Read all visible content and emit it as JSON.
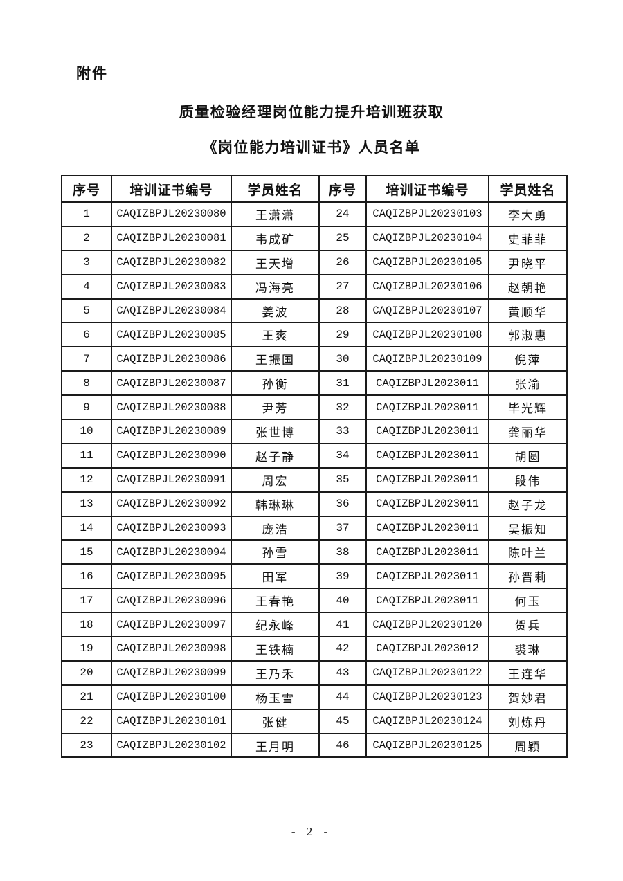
{
  "page": {
    "attachment_label": "附件",
    "title_line1": "质量检验经理岗位能力提升培训班获取",
    "title_line2": "《岗位能力培训证书》人员名单",
    "page_number": "- 2 -"
  },
  "table": {
    "headers": [
      "序号",
      "培训证书编号",
      "学员姓名",
      "序号",
      "培训证书编号",
      "学员姓名"
    ],
    "rows": [
      [
        "1",
        "CAQIZBPJL20230080",
        "王潇潇",
        "24",
        "CAQIZBPJL20230103",
        "李大勇"
      ],
      [
        "2",
        "CAQIZBPJL20230081",
        "韦成矿",
        "25",
        "CAQIZBPJL20230104",
        "史菲菲"
      ],
      [
        "3",
        "CAQIZBPJL20230082",
        "王天增",
        "26",
        "CAQIZBPJL20230105",
        "尹晓平"
      ],
      [
        "4",
        "CAQIZBPJL20230083",
        "冯海亮",
        "27",
        "CAQIZBPJL20230106",
        "赵朝艳"
      ],
      [
        "5",
        "CAQIZBPJL20230084",
        "姜波",
        "28",
        "CAQIZBPJL20230107",
        "黄顺华"
      ],
      [
        "6",
        "CAQIZBPJL20230085",
        "王爽",
        "29",
        "CAQIZBPJL20230108",
        "郭淑惠"
      ],
      [
        "7",
        "CAQIZBPJL20230086",
        "王振国",
        "30",
        "CAQIZBPJL20230109",
        "倪萍"
      ],
      [
        "8",
        "CAQIZBPJL20230087",
        "孙衡",
        "31",
        "CAQIZBPJL2023011",
        "张渝"
      ],
      [
        "9",
        "CAQIZBPJL20230088",
        "尹芳",
        "32",
        "CAQIZBPJL2023011",
        "毕光辉"
      ],
      [
        "10",
        "CAQIZBPJL20230089",
        "张世博",
        "33",
        "CAQIZBPJL2023011",
        "龚丽华"
      ],
      [
        "11",
        "CAQIZBPJL20230090",
        "赵子静",
        "34",
        "CAQIZBPJL2023011",
        "胡圆"
      ],
      [
        "12",
        "CAQIZBPJL20230091",
        "周宏",
        "35",
        "CAQIZBPJL2023011",
        "段伟"
      ],
      [
        "13",
        "CAQIZBPJL20230092",
        "韩琳琳",
        "36",
        "CAQIZBPJL2023011",
        "赵子龙"
      ],
      [
        "14",
        "CAQIZBPJL20230093",
        "庞浩",
        "37",
        "CAQIZBPJL2023011",
        "吴振知"
      ],
      [
        "15",
        "CAQIZBPJL20230094",
        "孙雪",
        "38",
        "CAQIZBPJL2023011",
        "陈叶兰"
      ],
      [
        "16",
        "CAQIZBPJL20230095",
        "田军",
        "39",
        "CAQIZBPJL2023011",
        "孙晋莉"
      ],
      [
        "17",
        "CAQIZBPJL20230096",
        "王春艳",
        "40",
        "CAQIZBPJL2023011",
        "何玉"
      ],
      [
        "18",
        "CAQIZBPJL20230097",
        "纪永峰",
        "41",
        "CAQIZBPJL20230120",
        "贺兵"
      ],
      [
        "19",
        "CAQIZBPJL20230098",
        "王铁楠",
        "42",
        "CAQIZBPJL2023012",
        "裘琳"
      ],
      [
        "20",
        "CAQIZBPJL20230099",
        "王乃禾",
        "43",
        "CAQIZBPJL20230122",
        "王连华"
      ],
      [
        "21",
        "CAQIZBPJL20230100",
        "杨玉雪",
        "44",
        "CAQIZBPJL20230123",
        "贺妙君"
      ],
      [
        "22",
        "CAQIZBPJL20230101",
        "张健",
        "45",
        "CAQIZBPJL20230124",
        "刘炼丹"
      ],
      [
        "23",
        "CAQIZBPJL20230102",
        "王月明",
        "46",
        "CAQIZBPJL20230125",
        "周颖"
      ]
    ],
    "col_names": [
      "cell-serial-number",
      "cell-certificate-number",
      "cell-student-name",
      "cell-serial-number",
      "cell-certificate-number",
      "cell-student-name"
    ]
  }
}
